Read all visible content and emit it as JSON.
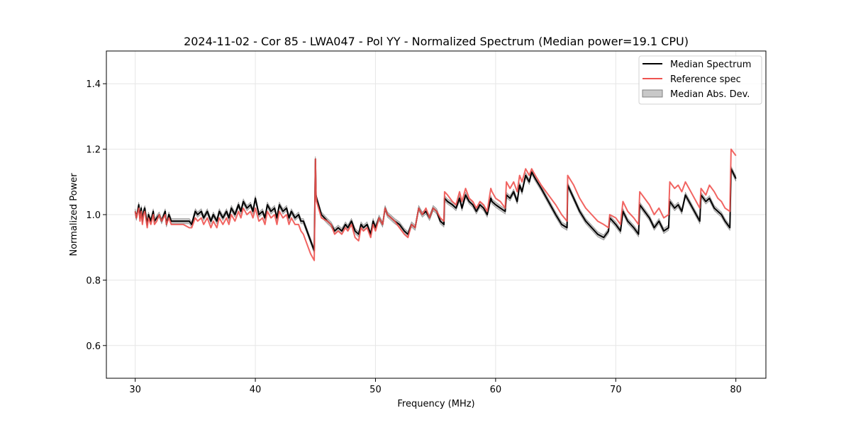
{
  "chart_data": {
    "type": "line",
    "title": "2024-11-02 - Cor 85 - LWA047 - Pol YY - Normalized Spectrum (Median power=19.1 CPU)",
    "xlabel": "Frequency (MHz)",
    "ylabel": "Normalized Power",
    "xlim": [
      27.6,
      82.5
    ],
    "ylim": [
      0.5,
      1.5
    ],
    "xticks": [
      30,
      40,
      50,
      60,
      70,
      80
    ],
    "yticks": [
      0.6,
      0.8,
      1.0,
      1.2,
      1.4
    ],
    "xtick_labels": [
      "30",
      "40",
      "50",
      "60",
      "70",
      "80"
    ],
    "ytick_labels": [
      "0.6",
      "0.8",
      "1.0",
      "1.2",
      "1.4"
    ],
    "grid": true,
    "legend_position": "top-right",
    "legend": [
      "Median Spectrum",
      "Reference spec",
      "Median Abs. Dev."
    ],
    "colors": {
      "median": "#000000",
      "reference": "#ef5350",
      "mad_fill": "#c8c8c8",
      "mad_edge": "#808080",
      "overlap": "#7a0c0c"
    },
    "series": [
      {
        "name": "Median Spectrum",
        "x": [
          30.0,
          30.1,
          30.3,
          30.4,
          30.5,
          30.6,
          30.7,
          30.8,
          31.0,
          31.1,
          31.3,
          31.5,
          31.6,
          31.8,
          32.0,
          32.2,
          32.5,
          32.6,
          32.8,
          33.0,
          33.2,
          33.5,
          34.0,
          34.5,
          34.7,
          35.0,
          35.2,
          35.5,
          35.7,
          36.0,
          36.3,
          36.5,
          36.8,
          37.0,
          37.3,
          37.6,
          37.8,
          38.0,
          38.3,
          38.6,
          38.8,
          39.0,
          39.3,
          39.6,
          39.8,
          40.0,
          40.3,
          40.6,
          40.8,
          41.0,
          41.3,
          41.6,
          41.8,
          42.0,
          42.3,
          42.6,
          42.8,
          43.0,
          43.3,
          43.6,
          43.8,
          44.0,
          44.3,
          44.6,
          44.9,
          45.0,
          45.05,
          45.1,
          45.5,
          46.0,
          46.3,
          46.6,
          46.9,
          47.2,
          47.5,
          47.7,
          48.0,
          48.3,
          48.6,
          48.8,
          49.0,
          49.3,
          49.6,
          49.8,
          50.0,
          50.3,
          50.6,
          50.8,
          51.0,
          51.3,
          51.6,
          52.0,
          52.4,
          52.7,
          53.0,
          53.3,
          53.6,
          53.9,
          54.2,
          54.5,
          54.8,
          55.1,
          55.4,
          55.7,
          55.75,
          56.0,
          56.4,
          56.7,
          57.0,
          57.2,
          57.5,
          57.8,
          58.1,
          58.4,
          58.7,
          59.0,
          59.3,
          59.6,
          59.7,
          60.0,
          60.4,
          60.8,
          60.9,
          61.2,
          61.5,
          61.8,
          62.0,
          62.2,
          62.5,
          62.8,
          63.0,
          63.3,
          63.8,
          64.4,
          65.0,
          65.5,
          65.95,
          66.0,
          66.5,
          67.0,
          67.5,
          68.0,
          68.5,
          69.0,
          69.4,
          69.5,
          70.0,
          70.4,
          70.6,
          71.0,
          71.5,
          71.9,
          72.0,
          72.4,
          72.8,
          73.2,
          73.6,
          74.0,
          74.4,
          74.5,
          74.9,
          75.2,
          75.5,
          75.8,
          76.1,
          76.4,
          76.7,
          77.0,
          77.1,
          77.5,
          77.8,
          78.2,
          78.5,
          78.8,
          79.1,
          79.5,
          79.6,
          80.0
        ],
        "y": [
          1.01,
          0.99,
          1.03,
          0.99,
          1.02,
          0.98,
          1.01,
          1.02,
          0.97,
          1.0,
          0.98,
          1.01,
          0.98,
          0.99,
          1.0,
          0.98,
          1.01,
          0.97,
          1.0,
          0.98,
          0.98,
          0.98,
          0.98,
          0.98,
          0.97,
          1.01,
          1.0,
          1.01,
          0.99,
          1.01,
          0.98,
          1.0,
          0.98,
          1.01,
          0.99,
          1.01,
          0.99,
          1.02,
          1.0,
          1.03,
          1.01,
          1.04,
          1.02,
          1.03,
          1.01,
          1.05,
          1.0,
          1.01,
          0.99,
          1.03,
          1.01,
          1.02,
          0.99,
          1.03,
          1.01,
          1.02,
          0.99,
          1.01,
          0.99,
          1.0,
          0.98,
          0.98,
          0.95,
          0.92,
          0.89,
          1.17,
          1.06,
          1.05,
          1.0,
          0.98,
          0.97,
          0.95,
          0.96,
          0.95,
          0.97,
          0.96,
          0.98,
          0.95,
          0.94,
          0.97,
          0.96,
          0.97,
          0.94,
          0.98,
          0.96,
          0.99,
          0.97,
          1.02,
          1.0,
          0.99,
          0.98,
          0.97,
          0.95,
          0.94,
          0.97,
          0.96,
          1.02,
          1.0,
          1.01,
          0.99,
          1.02,
          1.01,
          0.98,
          0.97,
          1.05,
          1.04,
          1.03,
          1.02,
          1.05,
          1.02,
          1.06,
          1.04,
          1.03,
          1.01,
          1.03,
          1.02,
          1.0,
          1.05,
          1.04,
          1.03,
          1.02,
          1.01,
          1.06,
          1.05,
          1.07,
          1.04,
          1.09,
          1.07,
          1.12,
          1.1,
          1.13,
          1.11,
          1.08,
          1.04,
          1.0,
          0.97,
          0.96,
          1.09,
          1.05,
          1.01,
          0.98,
          0.96,
          0.94,
          0.93,
          0.95,
          0.99,
          0.97,
          0.95,
          1.01,
          0.98,
          0.96,
          0.94,
          1.03,
          1.01,
          0.99,
          0.96,
          0.98,
          0.95,
          0.96,
          1.04,
          1.02,
          1.03,
          1.01,
          1.06,
          1.04,
          1.02,
          1.0,
          0.98,
          1.06,
          1.04,
          1.05,
          1.02,
          1.01,
          1.0,
          0.98,
          0.96,
          1.14,
          1.11
        ]
      },
      {
        "name": "Reference spec",
        "x": [
          30.0,
          30.1,
          30.3,
          30.4,
          30.5,
          30.6,
          30.7,
          30.8,
          31.0,
          31.1,
          31.3,
          31.5,
          31.6,
          31.8,
          32.0,
          32.2,
          32.5,
          32.6,
          32.8,
          33.0,
          33.2,
          33.5,
          34.0,
          34.5,
          34.7,
          35.0,
          35.2,
          35.5,
          35.7,
          36.0,
          36.3,
          36.5,
          36.8,
          37.0,
          37.3,
          37.6,
          37.8,
          38.0,
          38.3,
          38.6,
          38.8,
          39.0,
          39.3,
          39.6,
          39.8,
          40.0,
          40.3,
          40.6,
          40.8,
          41.0,
          41.3,
          41.6,
          41.8,
          42.0,
          42.3,
          42.6,
          42.8,
          43.0,
          43.3,
          43.6,
          43.8,
          44.0,
          44.3,
          44.6,
          44.9,
          45.0,
          45.05,
          45.1,
          45.5,
          46.0,
          46.3,
          46.6,
          46.9,
          47.2,
          47.5,
          47.7,
          48.0,
          48.3,
          48.6,
          48.8,
          49.0,
          49.3,
          49.6,
          49.8,
          50.0,
          50.3,
          50.6,
          50.8,
          51.0,
          51.3,
          51.6,
          52.0,
          52.4,
          52.7,
          53.0,
          53.3,
          53.6,
          53.9,
          54.2,
          54.5,
          54.8,
          55.1,
          55.4,
          55.7,
          55.75,
          56.0,
          56.4,
          56.7,
          57.0,
          57.2,
          57.5,
          57.8,
          58.1,
          58.4,
          58.7,
          59.0,
          59.3,
          59.6,
          59.7,
          60.0,
          60.4,
          60.8,
          60.9,
          61.2,
          61.5,
          61.8,
          62.0,
          62.2,
          62.5,
          62.8,
          63.0,
          63.3,
          63.8,
          64.4,
          65.0,
          65.5,
          65.95,
          66.0,
          66.5,
          67.0,
          67.5,
          68.0,
          68.5,
          69.0,
          69.4,
          69.5,
          70.0,
          70.4,
          70.6,
          71.0,
          71.5,
          71.9,
          72.0,
          72.4,
          72.8,
          73.2,
          73.6,
          74.0,
          74.4,
          74.5,
          74.9,
          75.2,
          75.5,
          75.8,
          76.1,
          76.4,
          76.7,
          77.0,
          77.1,
          77.5,
          77.8,
          78.2,
          78.5,
          78.8,
          79.1,
          79.5,
          79.6,
          80.0
        ],
        "y": [
          1.01,
          0.99,
          1.02,
          0.98,
          1.01,
          0.97,
          1.0,
          1.01,
          0.96,
          0.99,
          0.97,
          1.0,
          0.97,
          0.98,
          1.0,
          0.98,
          1.0,
          0.97,
          0.99,
          0.97,
          0.97,
          0.97,
          0.97,
          0.96,
          0.96,
          0.99,
          0.98,
          0.99,
          0.97,
          0.99,
          0.96,
          0.98,
          0.96,
          0.99,
          0.97,
          0.99,
          0.97,
          1.0,
          0.98,
          1.01,
          0.99,
          1.02,
          1.0,
          1.01,
          0.99,
          1.02,
          0.98,
          0.99,
          0.97,
          1.01,
          0.99,
          1.0,
          0.97,
          1.01,
          0.99,
          1.0,
          0.97,
          0.99,
          0.97,
          0.97,
          0.95,
          0.94,
          0.91,
          0.88,
          0.86,
          1.17,
          1.06,
          1.04,
          0.99,
          0.98,
          0.97,
          0.94,
          0.95,
          0.94,
          0.96,
          0.95,
          0.97,
          0.93,
          0.92,
          0.96,
          0.95,
          0.96,
          0.93,
          0.97,
          0.95,
          0.99,
          0.97,
          1.02,
          1.0,
          0.99,
          0.98,
          0.96,
          0.94,
          0.93,
          0.97,
          0.96,
          1.02,
          1.0,
          1.02,
          0.99,
          1.02,
          1.01,
          0.99,
          0.98,
          1.07,
          1.06,
          1.04,
          1.03,
          1.07,
          1.04,
          1.08,
          1.05,
          1.04,
          1.02,
          1.04,
          1.03,
          1.01,
          1.08,
          1.07,
          1.05,
          1.04,
          1.02,
          1.1,
          1.08,
          1.1,
          1.07,
          1.12,
          1.1,
          1.14,
          1.12,
          1.14,
          1.12,
          1.09,
          1.06,
          1.03,
          1.0,
          0.98,
          1.12,
          1.09,
          1.05,
          1.02,
          1.0,
          0.98,
          0.97,
          0.96,
          1.0,
          0.99,
          0.97,
          1.04,
          1.01,
          0.99,
          0.97,
          1.07,
          1.05,
          1.03,
          1.0,
          1.02,
          0.99,
          1.0,
          1.1,
          1.08,
          1.09,
          1.07,
          1.1,
          1.08,
          1.06,
          1.04,
          1.02,
          1.08,
          1.06,
          1.09,
          1.07,
          1.05,
          1.04,
          1.02,
          1.01,
          1.2,
          1.18
        ]
      }
    ],
    "mad_band_halfwidth": 0.008
  }
}
